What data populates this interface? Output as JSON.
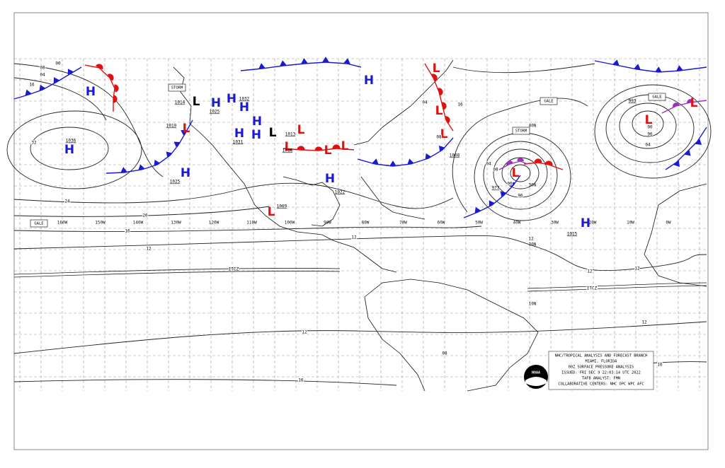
{
  "map": {
    "title_block": [
      "NHC/TROPICAL ANALYSIS AND FORECAST BRANCH",
      "MIAMI, FLORIDA",
      "00Z SURFACE PRESSURE ANALYSIS",
      "ISSUED: FRI DEC 9 22:03:14 UTC 2022",
      "TAFB ANALYST: FMN",
      "COLLABORATIVE CENTERS: NHC OPC WPC AFC"
    ],
    "logo": "NOAA",
    "longitudes": [
      "160W",
      "150W",
      "140W",
      "130W",
      "120W",
      "110W",
      "100W",
      "90W",
      "80W",
      "70W",
      "60W",
      "50W",
      "40W",
      "30W",
      "20W",
      "10W",
      "0W"
    ],
    "latitudes": [
      "40N",
      "30N",
      "20N",
      "10N"
    ],
    "centers": [
      {
        "symbol": "H",
        "pressure": "1036"
      },
      {
        "symbol": "H"
      },
      {
        "symbol": "H",
        "pressure": "1025"
      },
      {
        "symbol": "L",
        "pressure": "1019"
      },
      {
        "symbol": "L",
        "pressure": "1014"
      },
      {
        "symbol": "H",
        "pressure": "1025"
      },
      {
        "symbol": "H",
        "pressure": "1032"
      },
      {
        "symbol": "H"
      },
      {
        "symbol": "H",
        "pressure": "1031"
      },
      {
        "symbol": "H"
      },
      {
        "symbol": "H"
      },
      {
        "symbol": "L"
      },
      {
        "symbol": "L",
        "pressure": "1013"
      },
      {
        "symbol": "L",
        "pressure": "1018"
      },
      {
        "symbol": "L"
      },
      {
        "symbol": "L"
      },
      {
        "symbol": "H",
        "pressure": "1022"
      },
      {
        "symbol": "L",
        "pressure": "1009"
      },
      {
        "symbol": "H"
      },
      {
        "symbol": "L"
      },
      {
        "symbol": "L"
      },
      {
        "symbol": "L",
        "pressure": "1008"
      },
      {
        "symbol": "L",
        "pressure": "977"
      },
      {
        "symbol": "H",
        "pressure": "1015"
      },
      {
        "symbol": "L",
        "pressure": "993"
      },
      {
        "symbol": "L"
      }
    ],
    "isobar_labels": [
      "32",
      "16",
      "08",
      "04",
      "00",
      "12",
      "20",
      "24",
      "16",
      "12",
      "12",
      "08",
      "04",
      "00",
      "96",
      "12",
      "12",
      "16",
      "12",
      "08",
      "04",
      "00",
      "96",
      "08",
      "04",
      "16",
      "12",
      "16"
    ],
    "boxes": [
      "STORM",
      "GALE",
      "GALE",
      "GALE",
      "STORM"
    ],
    "features": [
      "ITCZ",
      "ITCZ"
    ]
  }
}
